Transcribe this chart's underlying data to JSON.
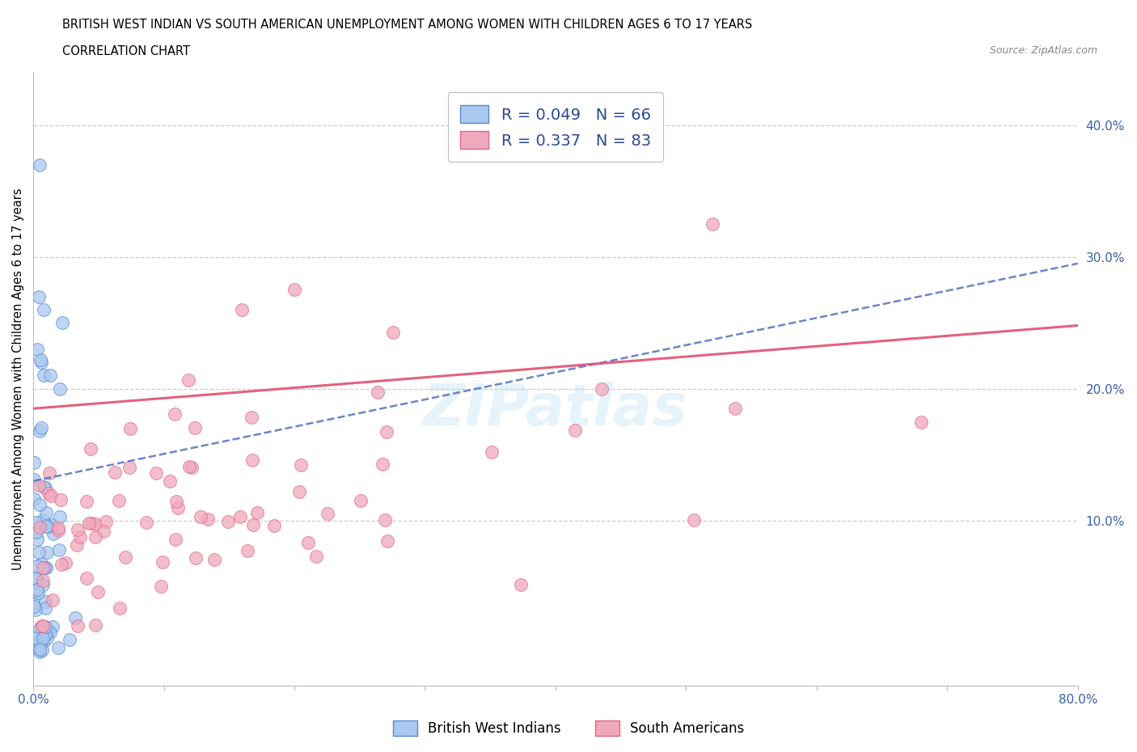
{
  "title_line1": "BRITISH WEST INDIAN VS SOUTH AMERICAN UNEMPLOYMENT AMONG WOMEN WITH CHILDREN AGES 6 TO 17 YEARS",
  "title_line2": "CORRELATION CHART",
  "source_text": "Source: ZipAtlas.com",
  "ylabel": "Unemployment Among Women with Children Ages 6 to 17 years",
  "xlim": [
    0.0,
    0.8
  ],
  "ylim": [
    -0.025,
    0.44
  ],
  "xticks": [
    0.0,
    0.1,
    0.2,
    0.3,
    0.4,
    0.5,
    0.6,
    0.7,
    0.8
  ],
  "xticklabels": [
    "0.0%",
    "",
    "",
    "",
    "",
    "",
    "",
    "",
    "80.0%"
  ],
  "ytick_vals": [
    0.1,
    0.2,
    0.3,
    0.4
  ],
  "yticklabels": [
    "10.0%",
    "20.0%",
    "30.0%",
    "40.0%"
  ],
  "blue_R": 0.049,
  "blue_N": 66,
  "pink_R": 0.337,
  "pink_N": 83,
  "blue_color": "#aac8f0",
  "pink_color": "#f0a8bc",
  "blue_edge": "#5888cc",
  "pink_edge": "#e06888",
  "blue_line_color": "#5070c0",
  "pink_line_color": "#e05070",
  "watermark": "ZIPatlas",
  "background_color": "#ffffff",
  "legend_label_blue": "British West Indians",
  "legend_label_pink": "South Americans",
  "blue_line_start_y": 0.13,
  "blue_line_end_y": 0.295,
  "pink_line_start_y": 0.185,
  "pink_line_end_y": 0.248
}
